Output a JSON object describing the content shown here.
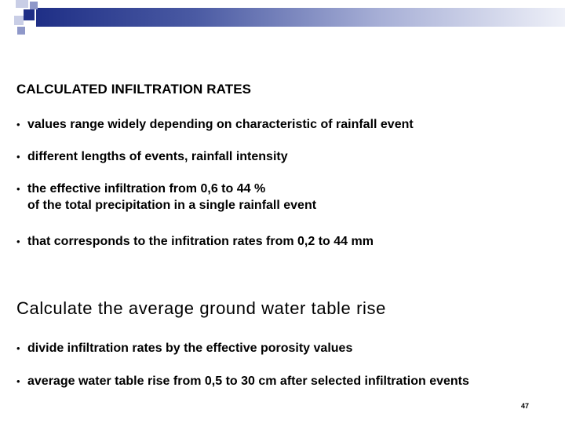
{
  "decoration": {
    "band_color_start": "#1f2f86",
    "band_color_end": "#eef0f8"
  },
  "section1": {
    "title": "CALCULATED INFILTRATION RATES",
    "bullets": [
      {
        "lines": [
          "values range widely depending on characteristic of rainfall event"
        ]
      },
      {
        "lines": [
          "different lengths of events, rainfall intensity"
        ]
      },
      {
        "lines": [
          "the effective infiltration from 0,6 to 44 %",
          "of the total precipitation in a single rainfall event"
        ]
      },
      {
        "lines": [
          "that corresponds to the infitration rates from 0,2 to 44 mm"
        ]
      }
    ]
  },
  "section2": {
    "title": "Calculate the average ground water table rise",
    "bullets": [
      {
        "lines": [
          "divide infiltration rates by the effective porosity values"
        ]
      },
      {
        "lines": [
          "average water table rise from 0,5 to 30 cm after selected infiltration events"
        ]
      }
    ]
  },
  "footer": {
    "page_number": "47"
  }
}
